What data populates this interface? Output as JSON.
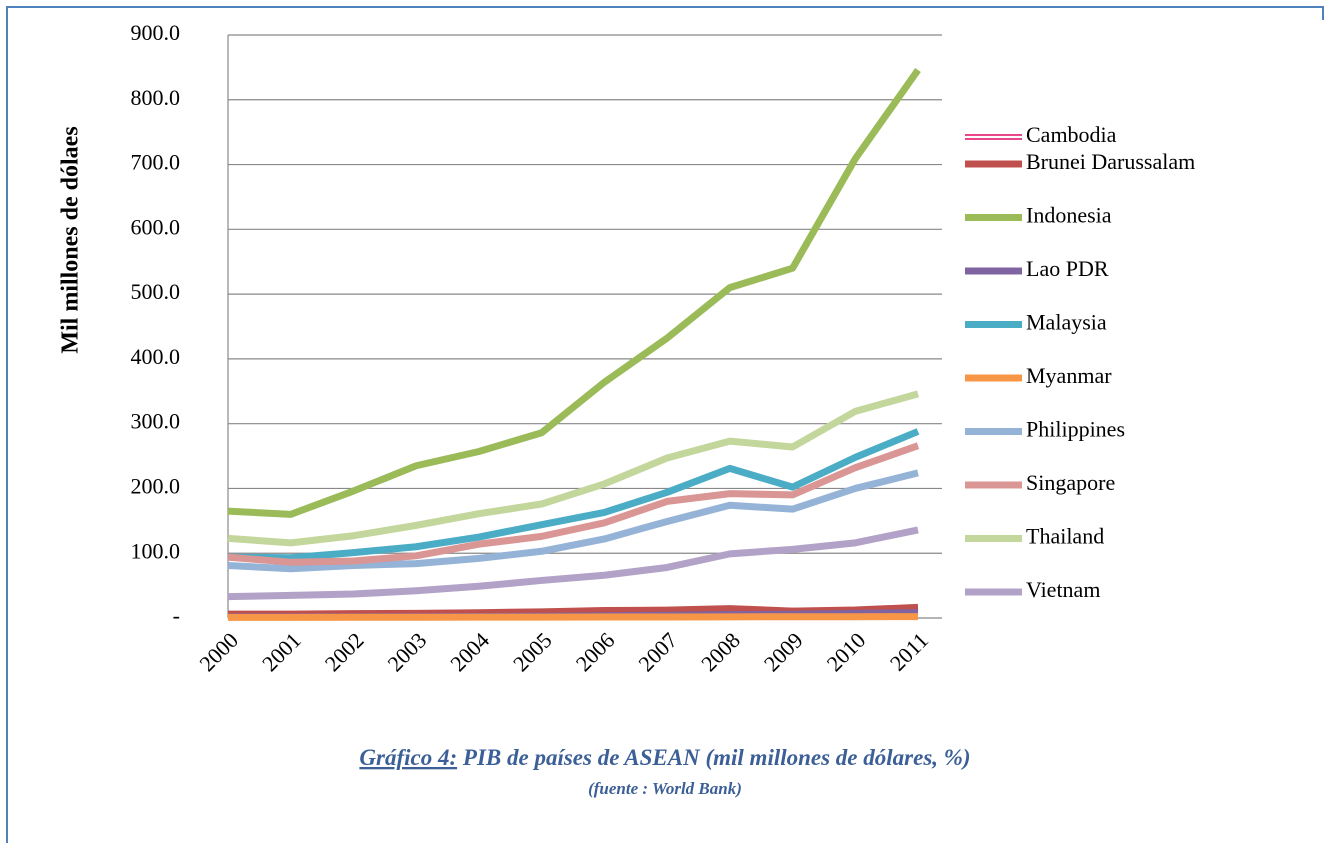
{
  "chart_data": {
    "type": "line",
    "y_label": "Mil millones de dólaes",
    "caption_label": "Gráfico 4:",
    "caption_text": " PIB de países de ASEAN (mil millones de dólares, %)",
    "source": "(fuente : World Bank)",
    "categories": [
      "2000",
      "2001",
      "2002",
      "2003",
      "2004",
      "2005",
      "2006",
      "2007",
      "2008",
      "2009",
      "2010",
      "2011"
    ],
    "ylim": [
      0,
      900
    ],
    "yticks": [
      {
        "value": 0,
        "label": "-"
      },
      {
        "value": 100,
        "label": "100.0"
      },
      {
        "value": 200,
        "label": "200.0"
      },
      {
        "value": 300,
        "label": "300.0"
      },
      {
        "value": 400,
        "label": "400.0"
      },
      {
        "value": 500,
        "label": "500.0"
      },
      {
        "value": 600,
        "label": "600.0"
      },
      {
        "value": 700,
        "label": "700.0"
      },
      {
        "value": 800,
        "label": "800.0"
      },
      {
        "value": 900,
        "label": "900.0"
      }
    ],
    "grid": true,
    "series": [
      {
        "name": "Cambodia",
        "color": "#e8488a",
        "values": [
          3.7,
          4.0,
          4.3,
          4.7,
          5.3,
          6.3,
          7.3,
          8.6,
          10.4,
          10.4,
          11.2,
          12.8
        ]
      },
      {
        "name": "Brunei Darussalam",
        "color": "#c0504d",
        "values": [
          6.0,
          6.0,
          6.7,
          7.2,
          8.2,
          9.5,
          11.5,
          12.2,
          14.4,
          10.7,
          12.4,
          16.4
        ]
      },
      {
        "name": "Indonesia",
        "color": "#9bbb59",
        "values": [
          165,
          160,
          196,
          235,
          257,
          286,
          364,
          432,
          510,
          540,
          709,
          846
        ]
      },
      {
        "name": "Lao PDR",
        "color": "#8064a2",
        "values": [
          1.7,
          1.8,
          1.8,
          2.0,
          2.4,
          2.7,
          3.5,
          4.2,
          5.4,
          5.8,
          7.2,
          8.3
        ]
      },
      {
        "name": "Malaysia",
        "color": "#4bacc6",
        "values": [
          94,
          93,
          101,
          110,
          125,
          144,
          163,
          194,
          231,
          202,
          248,
          288
        ]
      },
      {
        "name": "Myanmar",
        "color": "#f79646",
        "values": [
          1.0,
          1.0,
          1.1,
          1.2,
          1.3,
          1.4,
          1.5,
          1.6,
          1.8,
          1.9,
          2.0,
          2.2
        ]
      },
      {
        "name": "Philippines",
        "color": "#95b3d7",
        "values": [
          81,
          76,
          81,
          84,
          92,
          103,
          122,
          149,
          174,
          168,
          200,
          224
        ]
      },
      {
        "name": "Singapore",
        "color": "#d99694",
        "values": [
          94,
          86,
          88,
          96,
          114,
          126,
          147,
          180,
          192,
          190,
          232,
          266
        ]
      },
      {
        "name": "Thailand",
        "color": "#c3d69b",
        "values": [
          123,
          116,
          127,
          143,
          161,
          176,
          207,
          247,
          273,
          264,
          319,
          346
        ]
      },
      {
        "name": "Vietnam",
        "color": "#b3a2c7",
        "values": [
          33,
          35,
          37,
          42,
          49,
          58,
          66,
          78,
          99,
          106,
          116,
          136
        ]
      }
    ]
  }
}
